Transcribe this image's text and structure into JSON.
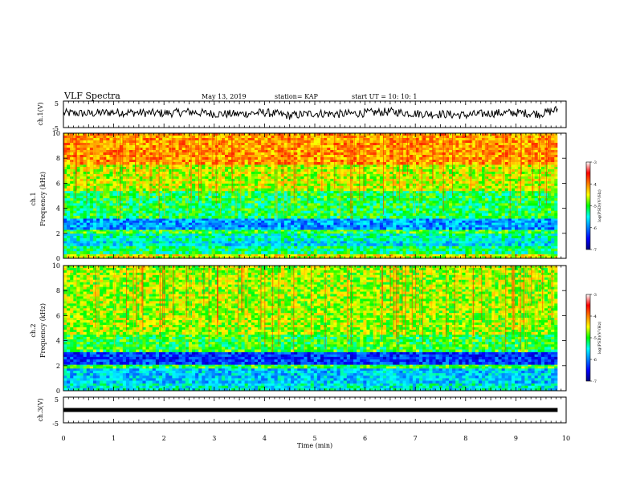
{
  "header": {
    "title": "VLF Spectra",
    "date": "May 13, 2019",
    "station": "station= KAP",
    "start": "start  UT  =   10: 10: 1"
  },
  "chart_data": [
    {
      "type": "line",
      "panel": "ch1-waveform",
      "ylabel": "ch.1(V)",
      "ylim": [
        -5,
        5
      ],
      "yticks": [
        "5",
        "-5"
      ],
      "xlim": [
        0,
        10
      ],
      "data_end_min": 9.83,
      "x": [
        0,
        0.5,
        1,
        1.5,
        2,
        2.5,
        3,
        3.5,
        4,
        4.5,
        5,
        5.5,
        6,
        6.5,
        7,
        7.5,
        8,
        8.5,
        9,
        9.5,
        9.83
      ],
      "y": [
        0.5,
        0.3,
        0.8,
        0.6,
        0.4,
        0.9,
        0.2,
        0.1,
        0.7,
        -0.5,
        0.4,
        0.1,
        0.5,
        1.0,
        0.3,
        0.1,
        -0.3,
        0.4,
        0.6,
        0.2,
        1.8
      ]
    },
    {
      "type": "heatmap",
      "panel": "ch1-spectrogram",
      "ylabel": "ch.1\nFrequency  (kHz)",
      "ylim": [
        0,
        10
      ],
      "yticks": [
        "0",
        "2",
        "4",
        "6",
        "8",
        "10"
      ],
      "xlim": [
        0,
        10
      ],
      "data_end_min": 9.83,
      "colorbar": {
        "label": "log(PSD)(V²/Hz)",
        "range": [
          -7,
          -3
        ],
        "ticks": [
          "-3",
          "-4",
          "-5",
          "-6",
          "-7"
        ]
      },
      "bands": [
        {
          "f0": 0.0,
          "f1": 0.35,
          "level": -4.5
        },
        {
          "f0": 0.35,
          "f1": 1.0,
          "level": -5.2
        },
        {
          "f0": 1.0,
          "f1": 1.4,
          "level": -5.6
        },
        {
          "f0": 1.4,
          "f1": 2.0,
          "level": -5.4
        },
        {
          "f0": 2.0,
          "f1": 2.3,
          "level": -5.0
        },
        {
          "f0": 2.3,
          "f1": 3.2,
          "level": -5.9
        },
        {
          "f0": 3.2,
          "f1": 5.4,
          "level": -5.1
        },
        {
          "f0": 5.4,
          "f1": 7.5,
          "level": -4.6
        },
        {
          "f0": 7.5,
          "f1": 10.0,
          "level": -4.1
        }
      ]
    },
    {
      "type": "heatmap",
      "panel": "ch2-spectrogram",
      "ylabel": "ch.2\nFrequency  (kHz)",
      "ylim": [
        0,
        10
      ],
      "yticks": [
        "0",
        "2",
        "4",
        "6",
        "8",
        "10"
      ],
      "xlim": [
        0,
        10
      ],
      "data_end_min": 9.83,
      "colorbar": {
        "label": "log(PSD)(V²/Hz)",
        "range": [
          -7,
          -3
        ],
        "ticks": [
          "-3",
          "-4",
          "-5",
          "-6",
          "-7"
        ]
      },
      "bands": [
        {
          "f0": 0.0,
          "f1": 0.6,
          "level": -5.5
        },
        {
          "f0": 0.6,
          "f1": 1.8,
          "level": -5.7
        },
        {
          "f0": 1.8,
          "f1": 2.1,
          "level": -5.0
        },
        {
          "f0": 2.1,
          "f1": 3.1,
          "level": -6.3
        },
        {
          "f0": 3.1,
          "f1": 4.5,
          "level": -5.0
        },
        {
          "f0": 4.5,
          "f1": 10.0,
          "level": -4.7
        }
      ]
    },
    {
      "type": "line",
      "panel": "ch3-waveform",
      "ylabel": "ch.3(V)",
      "ylim": [
        -5,
        5
      ],
      "yticks": [
        "5",
        "-5"
      ],
      "xlim": [
        0,
        10
      ],
      "data_end_min": 9.83,
      "x": [
        0,
        9.83
      ],
      "y": [
        0,
        0
      ]
    }
  ],
  "x_axis": {
    "label": "Time  (min)",
    "ticks": [
      "0",
      "1",
      "2",
      "3",
      "4",
      "5",
      "6",
      "7",
      "8",
      "9",
      "10"
    ]
  }
}
